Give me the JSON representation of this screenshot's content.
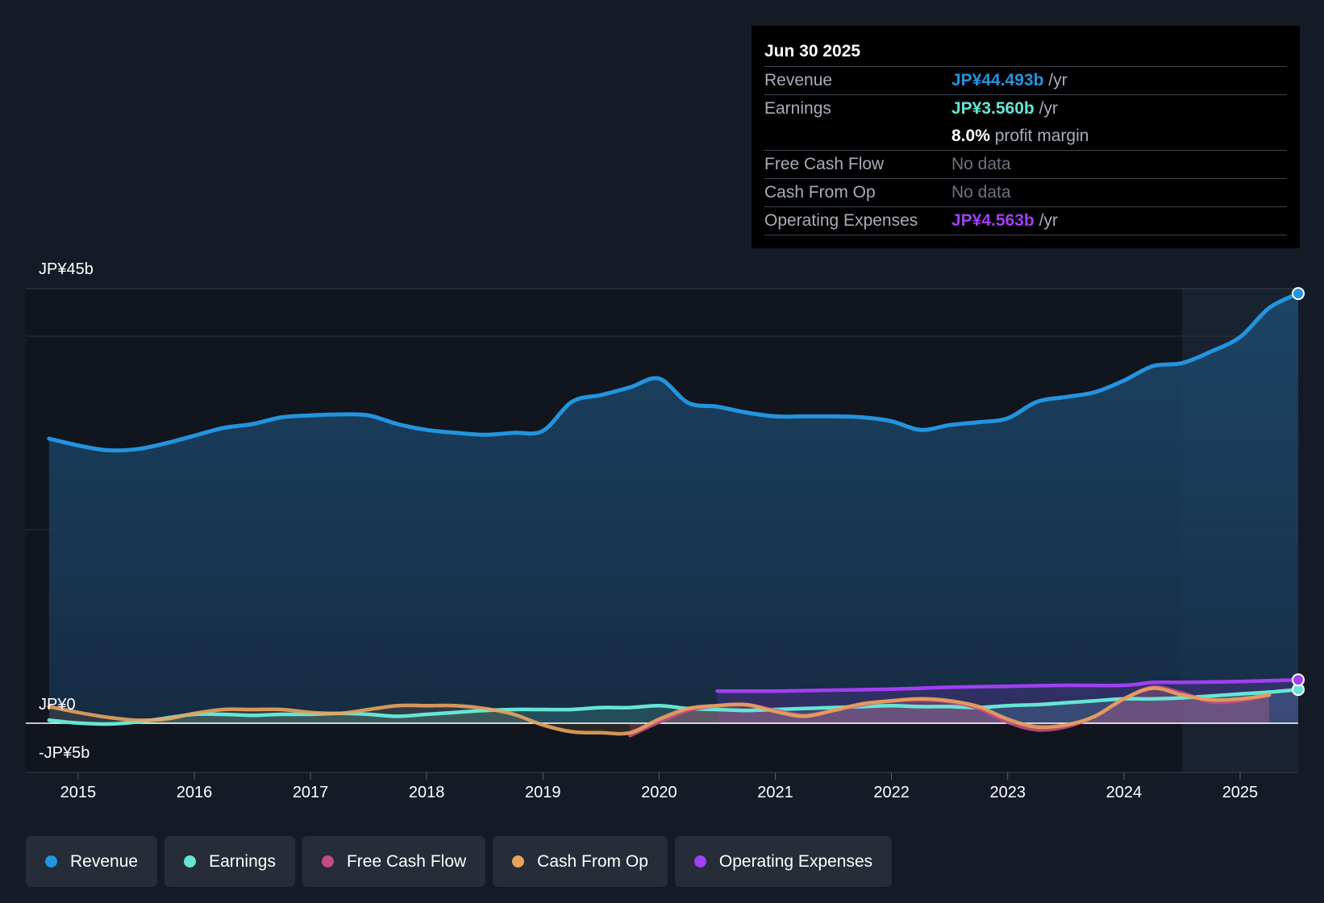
{
  "tooltip": {
    "date": "Jun 30 2025",
    "rows": {
      "revenue": {
        "label": "Revenue",
        "value": "JP¥44.493b",
        "unit": " /yr"
      },
      "earnings": {
        "label": "Earnings",
        "value": "JP¥3.560b",
        "unit": " /yr"
      },
      "margin": {
        "value": "8.0%",
        "unit": " profit margin"
      },
      "fcf": {
        "label": "Free Cash Flow",
        "value": "No data"
      },
      "cfo": {
        "label": "Cash From Op",
        "value": "No data"
      },
      "opex": {
        "label": "Operating Expenses",
        "value": "JP¥4.563b",
        "unit": " /yr"
      }
    }
  },
  "legend": {
    "revenue": "Revenue",
    "earnings": "Earnings",
    "fcf": "Free Cash Flow",
    "cfo": "Cash From Op",
    "opex": "Operating Expenses"
  },
  "colors": {
    "revenue": "#2394df",
    "earnings": "#65e6d4",
    "fcf": "#c44b83",
    "cfo": "#e8a35c",
    "opex": "#a13ff1"
  },
  "chart_data": {
    "type": "line",
    "title": "",
    "xlabel": "",
    "ylabel": "",
    "y_axis_labels": [
      "JP¥45b",
      "JP¥0",
      "-JP¥5b"
    ],
    "ylim": [
      -5,
      45
    ],
    "xlim": [
      2014.55,
      2025.5
    ],
    "x_ticks": [
      "2015",
      "2016",
      "2017",
      "2018",
      "2019",
      "2020",
      "2021",
      "2022",
      "2023",
      "2024",
      "2025"
    ],
    "forecast_start": 2024.5,
    "series": [
      {
        "name": "Revenue",
        "x": [
          2014.75,
          2015.0,
          2015.25,
          2015.5,
          2015.75,
          2016.0,
          2016.25,
          2016.5,
          2016.75,
          2017.0,
          2017.25,
          2017.5,
          2017.75,
          2018.0,
          2018.25,
          2018.5,
          2018.75,
          2019.0,
          2019.25,
          2019.5,
          2019.75,
          2020.0,
          2020.25,
          2020.5,
          2020.75,
          2021.0,
          2021.25,
          2021.5,
          2021.75,
          2022.0,
          2022.25,
          2022.5,
          2022.75,
          2023.0,
          2023.25,
          2023.5,
          2023.75,
          2024.0,
          2024.25,
          2024.5,
          2024.75,
          2025.0,
          2025.25,
          2025.5
        ],
        "values": [
          29.5,
          28.8,
          28.3,
          28.4,
          29.0,
          29.8,
          30.6,
          31.0,
          31.7,
          31.9,
          32.0,
          31.9,
          31.0,
          30.4,
          30.1,
          29.9,
          30.1,
          30.3,
          33.3,
          34.0,
          34.8,
          35.7,
          33.2,
          32.8,
          32.2,
          31.8,
          31.8,
          31.8,
          31.7,
          31.3,
          30.4,
          30.9,
          31.2,
          31.6,
          33.3,
          33.8,
          34.3,
          35.5,
          37.0,
          37.3,
          38.5,
          40.0,
          43.0,
          44.493
        ]
      },
      {
        "name": "Earnings",
        "x": [
          2014.75,
          2015.0,
          2015.25,
          2015.5,
          2015.75,
          2016.0,
          2016.25,
          2016.5,
          2016.75,
          2017.0,
          2017.25,
          2017.5,
          2017.75,
          2018.0,
          2018.25,
          2018.5,
          2018.75,
          2019.0,
          2019.25,
          2019.5,
          2019.75,
          2020.0,
          2020.25,
          2020.5,
          2020.75,
          2021.0,
          2021.25,
          2021.5,
          2021.75,
          2022.0,
          2022.25,
          2022.5,
          2022.75,
          2023.0,
          2023.25,
          2023.5,
          2023.75,
          2024.0,
          2024.25,
          2024.5,
          2024.75,
          2025.0,
          2025.25,
          2025.5
        ],
        "values": [
          0.4,
          0.1,
          0.0,
          0.2,
          0.6,
          1.0,
          1.0,
          0.9,
          1.0,
          1.0,
          1.1,
          1.0,
          0.8,
          1.0,
          1.2,
          1.4,
          1.5,
          1.5,
          1.5,
          1.7,
          1.7,
          1.9,
          1.6,
          1.5,
          1.4,
          1.5,
          1.6,
          1.7,
          1.8,
          1.9,
          1.8,
          1.8,
          1.7,
          1.9,
          2.0,
          2.2,
          2.4,
          2.6,
          2.6,
          2.7,
          2.9,
          3.1,
          3.3,
          3.56
        ]
      },
      {
        "name": "Free Cash Flow",
        "x": [
          2019.75,
          2020.0,
          2020.25,
          2020.5,
          2020.75,
          2021.0,
          2021.25,
          2021.5,
          2021.75,
          2022.0,
          2022.25,
          2022.5,
          2022.75,
          2023.0,
          2023.25,
          2023.5,
          2023.75,
          2024.0,
          2024.25,
          2024.5,
          2024.75,
          2025.0,
          2025.25
        ],
        "values": [
          -1.2,
          0.2,
          1.4,
          1.9,
          2.0,
          1.4,
          0.9,
          1.4,
          2.0,
          2.4,
          2.5,
          2.3,
          1.6,
          0.2,
          -0.6,
          -0.3,
          0.8,
          2.6,
          3.8,
          3.2,
          2.3,
          2.4,
          3.0
        ]
      },
      {
        "name": "Cash From Op",
        "x": [
          2014.75,
          2015.0,
          2015.25,
          2015.5,
          2015.75,
          2016.0,
          2016.25,
          2016.5,
          2016.75,
          2017.0,
          2017.25,
          2017.5,
          2017.75,
          2018.0,
          2018.25,
          2018.5,
          2018.75,
          2019.0,
          2019.25,
          2019.5,
          2019.75,
          2020.0,
          2020.25,
          2020.5,
          2020.75,
          2021.0,
          2021.25,
          2021.5,
          2021.75,
          2022.0,
          2022.25,
          2022.5,
          2022.75,
          2023.0,
          2023.25,
          2023.5,
          2023.75,
          2024.0,
          2024.25,
          2024.5,
          2024.75,
          2025.0,
          2025.25
        ],
        "values": [
          1.8,
          1.2,
          0.7,
          0.4,
          0.5,
          1.1,
          1.5,
          1.5,
          1.5,
          1.2,
          1.1,
          1.5,
          1.9,
          1.9,
          1.9,
          1.6,
          1.0,
          -0.1,
          -0.8,
          -0.9,
          -0.9,
          0.5,
          1.6,
          1.9,
          2.0,
          1.3,
          0.8,
          1.4,
          2.1,
          2.4,
          2.6,
          2.4,
          1.8,
          0.5,
          -0.3,
          -0.1,
          0.8,
          2.6,
          3.7,
          3.0,
          2.5,
          2.6,
          3.0
        ]
      },
      {
        "name": "Operating Expenses",
        "x": [
          2020.5,
          2021.0,
          2021.5,
          2022.0,
          2022.5,
          2023.0,
          2023.5,
          2024.0,
          2024.25,
          2024.5,
          2025.0,
          2025.5
        ],
        "values": [
          3.4,
          3.4,
          3.5,
          3.6,
          3.8,
          3.9,
          4.0,
          4.0,
          4.3,
          4.3,
          4.4,
          4.563
        ]
      }
    ]
  }
}
